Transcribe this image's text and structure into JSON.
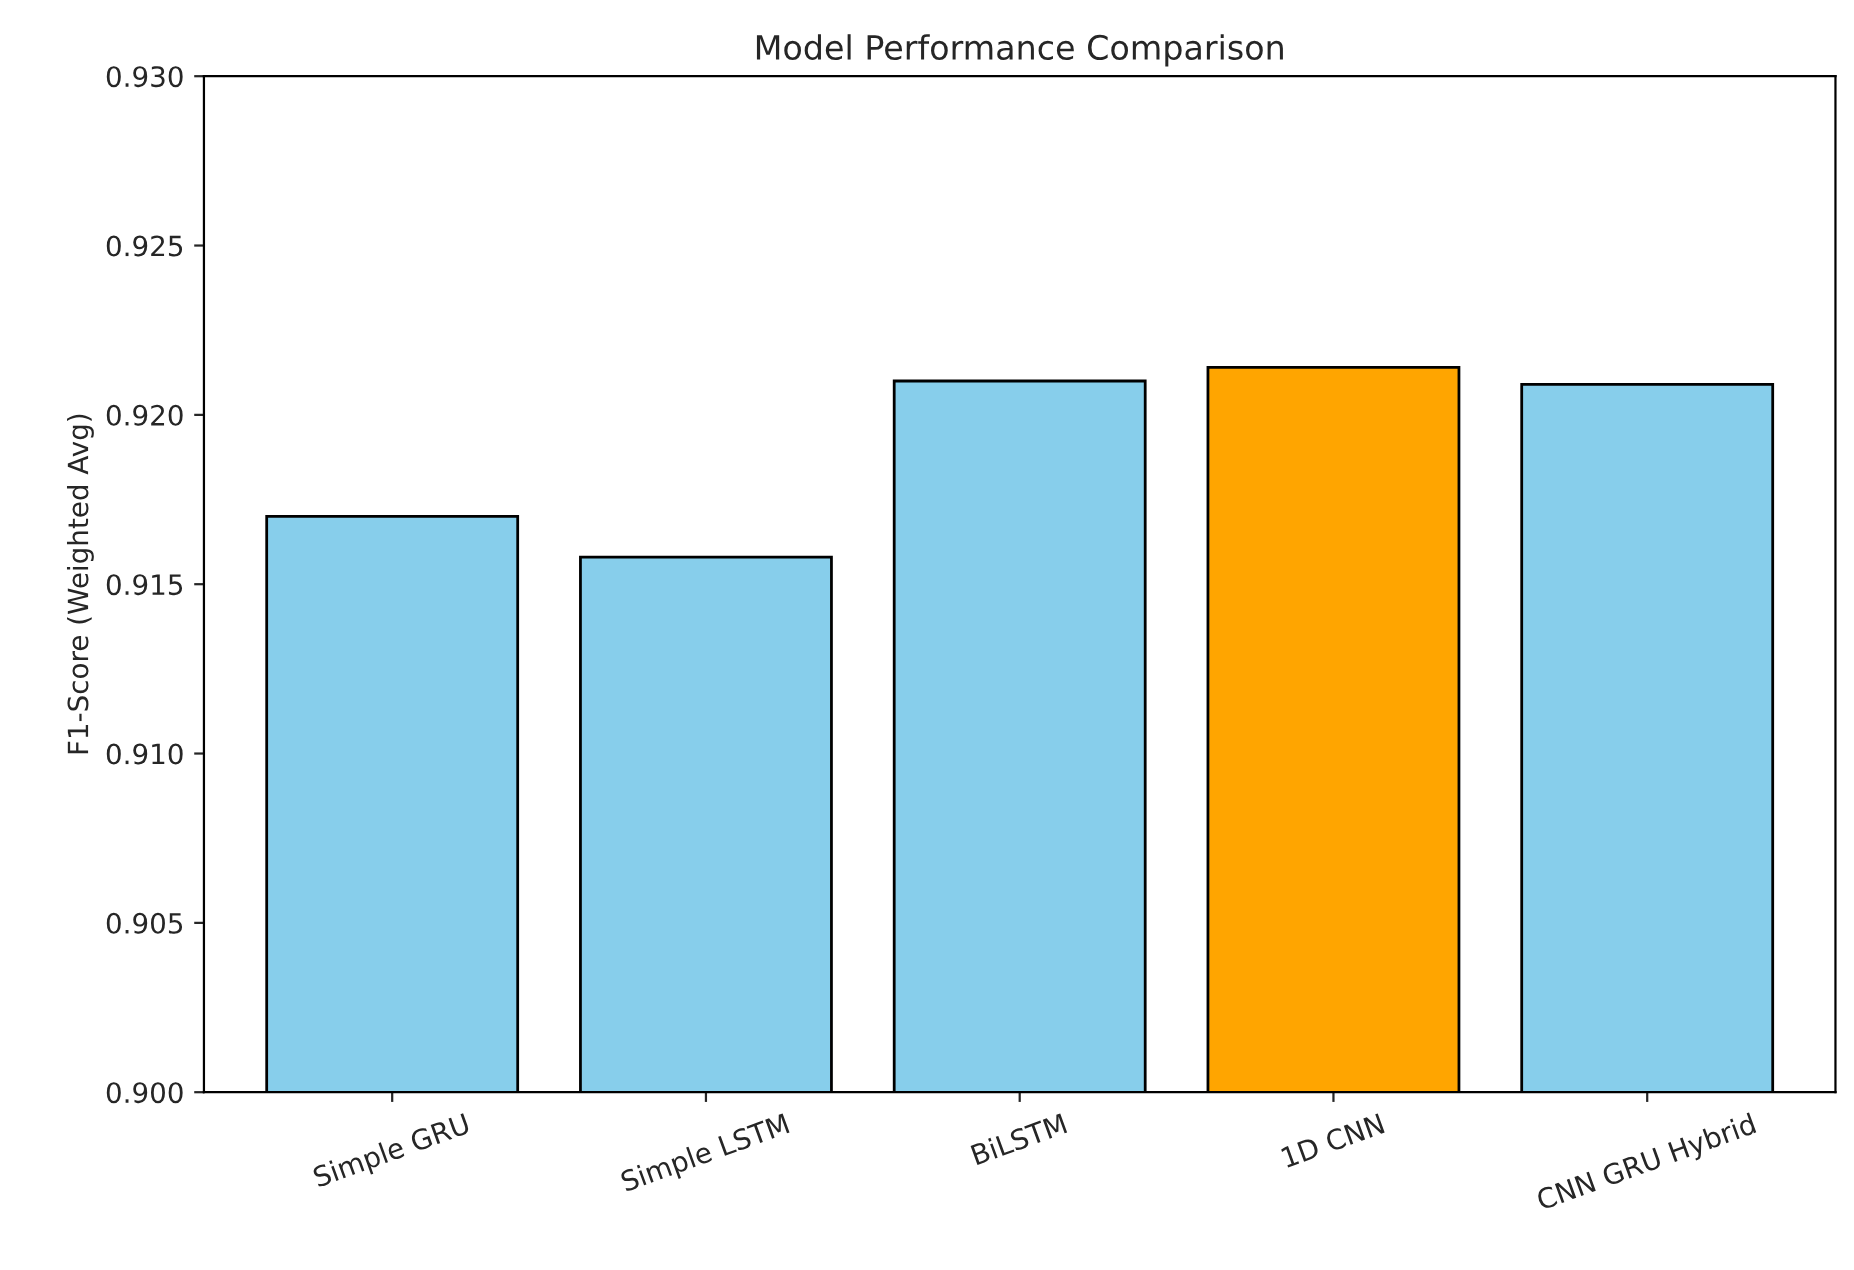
{
  "chart_data": {
    "type": "bar",
    "title": "Model Performance Comparison",
    "ylabel": "F1-Score (Weighted Avg)",
    "categories": [
      "Simple GRU",
      "Simple LSTM",
      "BiLSTM",
      "1D CNN",
      "CNN GRU Hybrid"
    ],
    "values": [
      0.917,
      0.9158,
      0.921,
      0.9214,
      0.9209
    ],
    "colors": [
      "#87ceeb",
      "#87ceeb",
      "#87ceeb",
      "#ffa500",
      "#87ceeb"
    ],
    "ylim": [
      0.9,
      0.93
    ],
    "yticks": [
      {
        "value": 0.9,
        "label": "0.900"
      },
      {
        "value": 0.905,
        "label": "0.905"
      },
      {
        "value": 0.91,
        "label": "0.910"
      },
      {
        "value": 0.915,
        "label": "0.915"
      },
      {
        "value": 0.92,
        "label": "0.920"
      },
      {
        "value": 0.925,
        "label": "0.925"
      },
      {
        "value": 0.93,
        "label": "0.930"
      }
    ],
    "grid": false
  }
}
